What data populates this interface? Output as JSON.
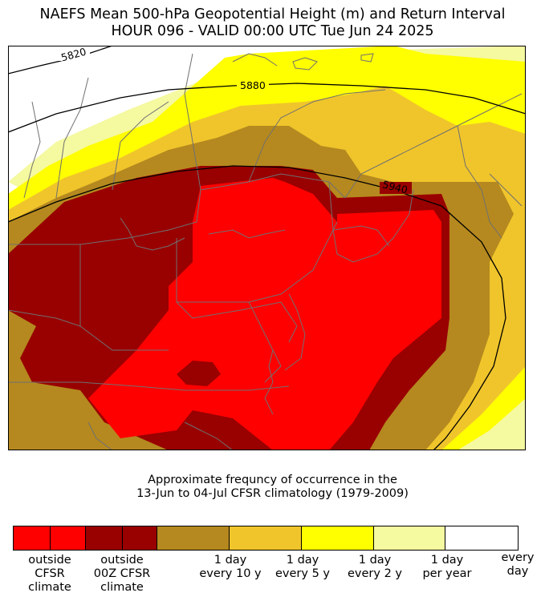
{
  "title": {
    "line1": "NAEFS Mean 500-hPa Geopotential Height (m) and Return Interval",
    "line2": "HOUR 096 - VALID 00:00 UTC Tue Jun 24 2025"
  },
  "map": {
    "contours": [
      "5820",
      "5880",
      "5940"
    ],
    "colors": {
      "outside_cfsr": "#ff0000",
      "outside_00z": "#990000",
      "every_10y": "#b5891f",
      "every_5y": "#f0c52b",
      "every_2y": "#ffff00",
      "per_year": "#f5f9a0",
      "every_day": "#ffffff"
    }
  },
  "subtitle": {
    "line1": "Approximate frequncy of occurrence in the",
    "line2": "13-Jun to 04-Jul CFSR climatology (1979-2009)"
  },
  "legend": {
    "swatches": [
      "#ff0000",
      "#ff0000",
      "#990000",
      "#990000",
      "#b5891f",
      "#f0c52b",
      "#ffff00",
      "#f5f9a0",
      "#ffffff"
    ],
    "labels": [
      "outside\nCFSR\nclimate",
      "outside\n00Z CFSR\nclimate",
      "1 day\nevery 10 y",
      "1 day\nevery 5 y",
      "1 day\nevery 2 y",
      "1 day\nper year",
      "every\nday"
    ]
  }
}
